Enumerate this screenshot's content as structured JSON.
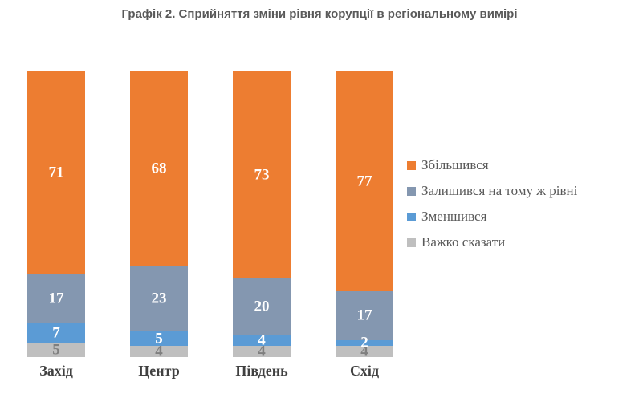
{
  "page": {
    "title": "Графік 2. Сприйняття зміни рівня корупції в регіональному вимірі"
  },
  "chart_data": {
    "type": "bar",
    "stacked": true,
    "title": "Графік 2. Сприйняття зміни рівня корупції в регіональному вимірі",
    "categories": [
      "Захід",
      "Центр",
      "Південь",
      "Схід"
    ],
    "series": [
      {
        "name": "Збільшився",
        "color": "#ED7D31",
        "label_color": "#ffffff",
        "values": [
          71,
          68,
          73,
          77
        ]
      },
      {
        "name": "Залишився на тому ж рівні",
        "color": "#8497B0",
        "label_color": "#ffffff",
        "values": [
          17,
          23,
          20,
          17
        ]
      },
      {
        "name": "Зменшився",
        "color": "#5B9BD5",
        "label_color": "#ffffff",
        "values": [
          7,
          5,
          4,
          2
        ]
      },
      {
        "name": "Важко сказати",
        "color": "#BFBFBF",
        "label_color": "#7f7f7f",
        "values": [
          5,
          4,
          4,
          4
        ]
      }
    ],
    "ylim": [
      0,
      100
    ],
    "grid": false,
    "legend_position": "right",
    "data_labels": true
  }
}
